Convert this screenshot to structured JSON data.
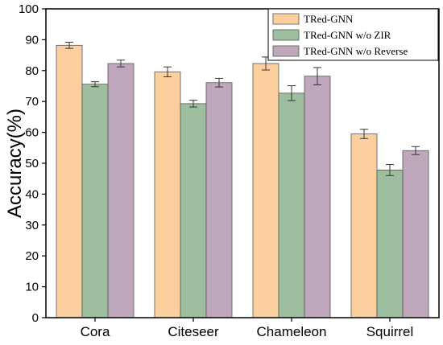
{
  "chart_data": {
    "type": "bar",
    "title": "",
    "xlabel": "",
    "ylabel": "Accuracy(%)",
    "ylim": [
      0,
      100
    ],
    "yticks": [
      0,
      10,
      20,
      30,
      40,
      50,
      60,
      70,
      80,
      90,
      100
    ],
    "categories": [
      "Cora",
      "Citeseer",
      "Chameleon",
      "Squirrel"
    ],
    "grid": false,
    "legend_position": "top-right",
    "series": [
      {
        "name": "TRed-GNN",
        "color": "#FCCF9E",
        "values": [
          88.2,
          79.6,
          82.3,
          59.5
        ],
        "errors": [
          1.0,
          1.6,
          2.1,
          1.5
        ]
      },
      {
        "name": "TRed-GNN w/o ZIR",
        "color": "#9DBFA0",
        "values": [
          75.6,
          69.3,
          72.7,
          47.8
        ],
        "errors": [
          0.8,
          1.1,
          2.4,
          1.8
        ]
      },
      {
        "name": "TRed-GNN w/o Reverse",
        "color": "#BFA8BB",
        "values": [
          82.3,
          76.1,
          78.2,
          54.1
        ],
        "errors": [
          1.1,
          1.4,
          2.8,
          1.3
        ]
      }
    ]
  }
}
